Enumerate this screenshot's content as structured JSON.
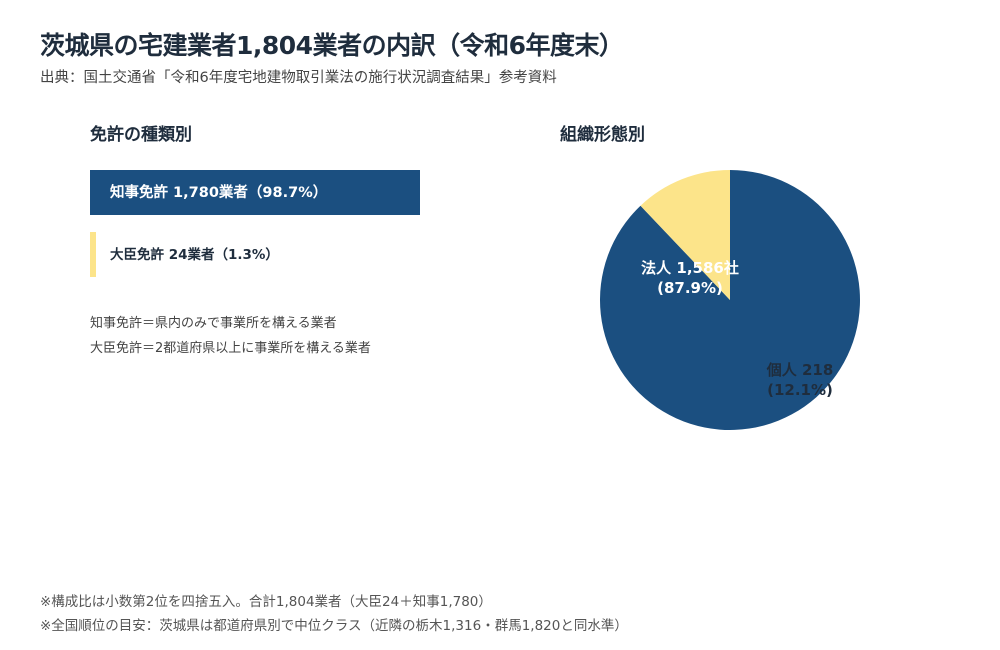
{
  "title": "茨城県の宅建業者1,804業者の内訳（令和6年度末）",
  "source": "出典：国土交通省「令和6年度宅地建物取引業法の施行状況調査結果」参考資料",
  "colors": {
    "navy": "#1b4f80",
    "yellow": "#fce48a"
  },
  "chart_data": [
    {
      "type": "bar",
      "title": "免許の種類別",
      "orientation": "horizontal",
      "categories": [
        "知事免許",
        "大臣免許"
      ],
      "values": [
        1780,
        24
      ],
      "percents": [
        98.7,
        1.3
      ],
      "labels": [
        "知事免許 1,780業者（98.7%）",
        "大臣免許 24業者（1.3%）"
      ],
      "colors": [
        "#1b4f80",
        "#fce48a"
      ],
      "notes": [
        "知事免許＝県内のみで事業所を構える業者",
        "大臣免許＝2都道府県以上に事業所を構える業者"
      ]
    },
    {
      "type": "pie",
      "title": "組織形態別",
      "categories": [
        "法人",
        "個人"
      ],
      "values": [
        1586,
        218
      ],
      "percents": [
        87.9,
        12.1
      ],
      "labels": [
        {
          "line1": "法人 1,586社",
          "line2": "(87.9%)"
        },
        {
          "line1": "個人 218",
          "line2": "(12.1%)"
        }
      ],
      "colors": [
        "#1b4f80",
        "#fce48a"
      ]
    }
  ],
  "footnotes": [
    "※構成比は小数第2位を四捨五入。合計1,804業者（大臣24＋知事1,780）",
    "※全国順位の目安：茨城県は都道府県別で中位クラス（近隣の栃木1,316・群馬1,820と同水準）"
  ]
}
